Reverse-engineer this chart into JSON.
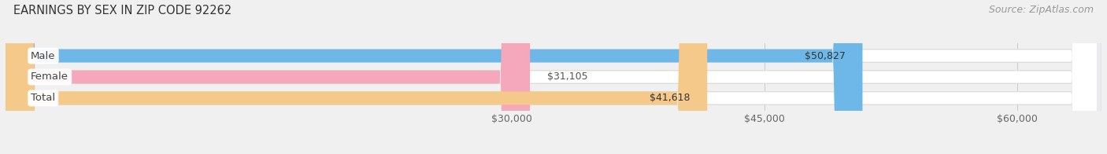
{
  "title": "EARNINGS BY SEX IN ZIP CODE 92262",
  "source": "Source: ZipAtlas.com",
  "categories": [
    "Male",
    "Female",
    "Total"
  ],
  "values": [
    50827,
    31105,
    41618
  ],
  "bar_colors": [
    "#6db8e8",
    "#f5a8bc",
    "#f5c98a"
  ],
  "value_labels": [
    "$50,827",
    "$31,105",
    "$41,618"
  ],
  "xmin": 0,
  "xmax": 65000,
  "xticks": [
    30000,
    45000,
    60000
  ],
  "xtick_labels": [
    "$30,000",
    "$45,000",
    "$60,000"
  ],
  "background_color": "#f0f0f0",
  "bar_bg_color": "#f0f0f0",
  "bar_inner_bg": "#e8e8ec",
  "title_fontsize": 10.5,
  "tick_fontsize": 9,
  "source_fontsize": 9,
  "bar_height": 0.62,
  "grid_color": "#cccccc"
}
